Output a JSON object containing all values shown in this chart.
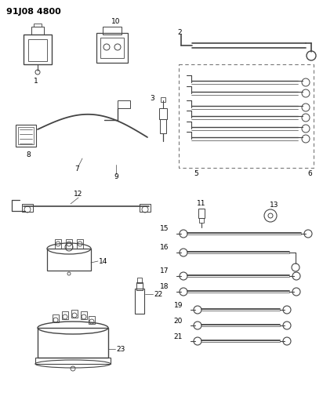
{
  "title": "91J08 4800",
  "bg_color": "#ffffff",
  "line_color": "#444444",
  "fig_width": 4.12,
  "fig_height": 5.33,
  "dpi": 100
}
